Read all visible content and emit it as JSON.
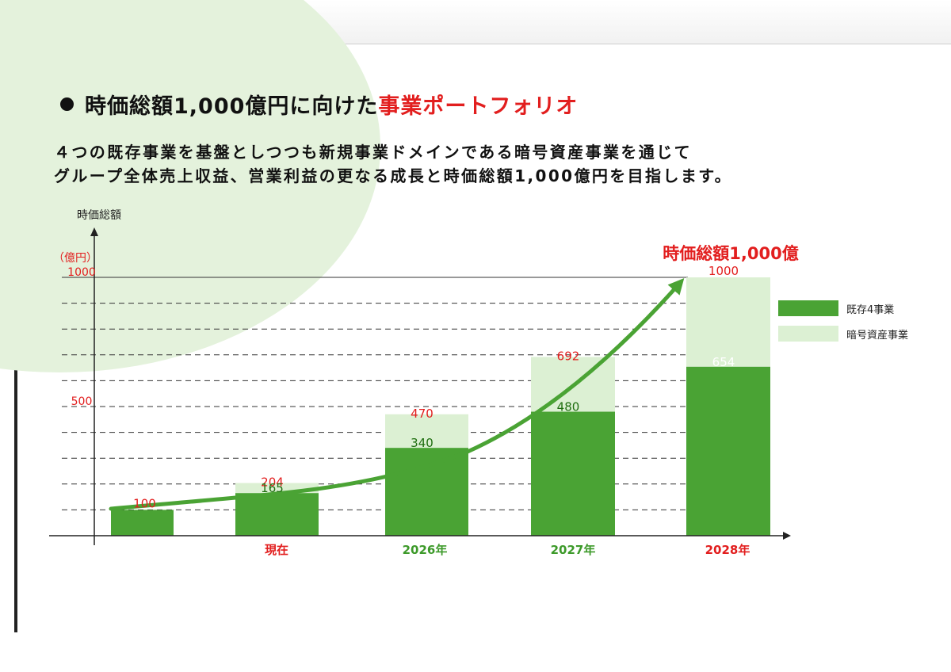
{
  "title": {
    "prefix": "時価総額1,000億円に向けた",
    "highlight": "事業ポートフォリオ"
  },
  "description": {
    "line1": "４つの既存事業を基盤としつつも新規事業ドメインである暗号資産事業を通じて",
    "line2": "グループ全体売上収益、営業利益の更なる成長と時価総額1,000億円を目指します。"
  },
  "colors": {
    "dark_green": "#4aa334",
    "light_green": "#dcf0d3",
    "red": "#e21e1e",
    "axis_label_green": "#3d9a2a"
  },
  "chart_data": {
    "type": "bar",
    "stacked": true,
    "ylabel": "時価総額",
    "yunit": "（億円）",
    "ylim": [
      0,
      1000
    ],
    "yticks": [
      500,
      1000
    ],
    "grid": "dashed, every 100",
    "categories": [
      "",
      "現在",
      "2026年",
      "2027年",
      "2028年"
    ],
    "category_label_colors": [
      "#e21e1e",
      "#e21e1e",
      "#3d9a2a",
      "#3d9a2a",
      "#e21e1e"
    ],
    "series": [
      {
        "name": "既存4事業",
        "values": [
          100,
          165,
          340,
          480,
          654
        ]
      },
      {
        "name": "暗号資産事業",
        "values": [
          0,
          39,
          130,
          212,
          346
        ]
      }
    ],
    "totals": [
      100,
      204,
      470,
      692,
      1000
    ],
    "annotation": "時価総額1,000億",
    "trend": "green arrow rising to 2028年",
    "legend_position": "right"
  }
}
